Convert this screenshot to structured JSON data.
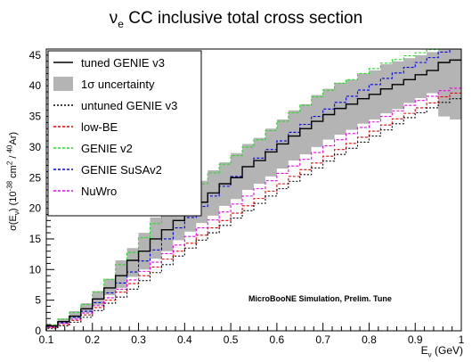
{
  "chart_data": {
    "type": "line",
    "title_main": "νe CC inclusive total cross section",
    "title": "ν",
    "title_sub": "e",
    "title_rest": " CC inclusive total cross section",
    "ylabel_prefix": "σ(E",
    "ylabel_sub": "ν",
    "ylabel_mid": ") (10",
    "ylabel_sup1": "-38",
    "ylabel_unit": " cm",
    "ylabel_sup2": "2",
    "ylabel_slash": " / ",
    "ylabel_sup3": "40",
    "ylabel_end": "Ar)",
    "xlabel_prefix": "E",
    "xlabel_sub": "ν",
    "xlabel_end": " (GeV)",
    "annotation": "MicroBooNE Simulation, Prelim. Tune",
    "xlim": [
      0.1,
      1.0
    ],
    "ylim": [
      0,
      46
    ],
    "xticks": [
      "0.1",
      "0.2",
      "0.3",
      "0.4",
      "0.5",
      "0.6",
      "0.7",
      "0.8",
      "0.9",
      "1"
    ],
    "yticks": [
      "0",
      "5",
      "10",
      "15",
      "20",
      "25",
      "30",
      "35",
      "40",
      "45"
    ],
    "legend_position": "top-left",
    "bin_edges": [
      0.1,
      0.125,
      0.15,
      0.175,
      0.2,
      0.225,
      0.25,
      0.275,
      0.3,
      0.325,
      0.35,
      0.375,
      0.4,
      0.425,
      0.45,
      0.475,
      0.5,
      0.525,
      0.55,
      0.575,
      0.6,
      0.625,
      0.65,
      0.675,
      0.7,
      0.725,
      0.75,
      0.775,
      0.8,
      0.825,
      0.85,
      0.875,
      0.9,
      0.925,
      0.95,
      0.975,
      1.0
    ],
    "band": {
      "name": "1σ uncertainty",
      "color": "#b4b4b4",
      "low": [
        0.6,
        1.2,
        2.0,
        3.0,
        4.2,
        5.8,
        7.0,
        8.8,
        10.0,
        11.8,
        13.0,
        14.8,
        16.2,
        17.6,
        18.8,
        20.4,
        21.5,
        23.0,
        24.0,
        25.2,
        26.5,
        27.8,
        28.8,
        30.0,
        31.2,
        32.0,
        32.8,
        33.8,
        34.5,
        35.5,
        36.2,
        37.2,
        38.0,
        38.8,
        35.0,
        34.5
      ],
      "high": [
        1.0,
        2.0,
        3.2,
        4.5,
        6.5,
        8.5,
        11.5,
        13.5,
        16.0,
        18.5,
        20.0,
        21.5,
        22.5,
        24.5,
        26.2,
        27.5,
        29.0,
        30.5,
        31.5,
        33.0,
        34.5,
        36.0,
        37.0,
        38.5,
        39.5,
        40.5,
        41.0,
        42.0,
        42.5,
        43.5,
        44.0,
        44.5,
        45.0,
        45.5,
        46.0,
        46.0
      ]
    },
    "series": [
      {
        "name": "tuned GENIE v3",
        "color": "#000000",
        "dash": "",
        "values": [
          0.8,
          1.5,
          2.4,
          3.6,
          5.2,
          7.0,
          9.0,
          11.5,
          13.0,
          15.0,
          16.5,
          18.0,
          19.5,
          21.0,
          22.5,
          24.0,
          25.0,
          26.8,
          27.8,
          29.2,
          30.5,
          31.8,
          33.0,
          34.2,
          35.3,
          36.3,
          37.0,
          37.9,
          38.6,
          39.5,
          40.2,
          41.0,
          41.8,
          42.5,
          43.8,
          44.2
        ]
      },
      {
        "name": "untuned GENIE v3",
        "color": "#000000",
        "dash": "2,2",
        "values": [
          0.4,
          0.8,
          1.4,
          2.2,
          3.3,
          4.5,
          5.5,
          6.8,
          8.2,
          9.5,
          10.8,
          12.2,
          13.5,
          14.8,
          16.0,
          17.2,
          18.4,
          19.6,
          20.8,
          22.0,
          23.2,
          24.4,
          25.5,
          26.6,
          27.7,
          28.8,
          29.8,
          30.8,
          31.8,
          32.8,
          33.8,
          34.8,
          35.6,
          36.4,
          37.3,
          37.9
        ]
      },
      {
        "name": "low-BE",
        "color": "#ee0000",
        "dash": "3,2",
        "values": [
          0.5,
          1.0,
          1.7,
          2.6,
          3.8,
          5.0,
          6.3,
          7.7,
          9.0,
          10.4,
          11.7,
          13.0,
          14.3,
          15.6,
          16.8,
          18.0,
          19.2,
          20.4,
          21.6,
          22.8,
          24.0,
          25.2,
          26.3,
          27.4,
          28.5,
          29.6,
          30.6,
          31.6,
          32.6,
          33.6,
          34.6,
          35.5,
          36.4,
          37.2,
          38.2,
          38.8
        ]
      },
      {
        "name": "GENIE v2",
        "color": "#22dd22",
        "dash": "3,2",
        "values": [
          1.0,
          1.9,
          3.0,
          4.3,
          6.3,
          8.4,
          10.8,
          12.8,
          15.2,
          17.5,
          19.2,
          20.8,
          22.2,
          24.0,
          25.8,
          27.2,
          28.6,
          30.0,
          31.2,
          32.7,
          34.2,
          35.6,
          36.8,
          38.2,
          39.3,
          40.4,
          41.0,
          42.0,
          42.8,
          43.7,
          44.3,
          44.9,
          45.4,
          45.9,
          46.5,
          46.8
        ]
      },
      {
        "name": "GENIE SuSAv2",
        "color": "#0000ee",
        "dash": "3,2",
        "values": [
          0.7,
          1.3,
          2.2,
          3.2,
          4.6,
          6.2,
          7.8,
          9.6,
          11.4,
          13.2,
          15.0,
          16.8,
          18.5,
          20.3,
          22.0,
          23.6,
          25.2,
          26.8,
          28.2,
          29.6,
          31.0,
          32.4,
          33.7,
          35.0,
          36.2,
          37.3,
          38.3,
          39.3,
          40.2,
          41.2,
          42.1,
          43.0,
          43.8,
          44.6,
          45.5,
          46.0
        ]
      },
      {
        "name": "NuWro",
        "color": "#ee00ee",
        "dash": "3,2",
        "values": [
          0.6,
          1.2,
          1.9,
          2.9,
          4.1,
          5.4,
          6.8,
          8.3,
          9.7,
          11.2,
          12.6,
          14.0,
          15.4,
          16.8,
          18.1,
          19.4,
          20.7,
          22.0,
          23.2,
          24.5,
          25.7,
          26.9,
          28.0,
          29.1,
          30.2,
          31.2,
          32.2,
          33.2,
          34.1,
          35.0,
          35.9,
          36.8,
          37.6,
          38.3,
          39.2,
          39.6
        ]
      }
    ]
  }
}
